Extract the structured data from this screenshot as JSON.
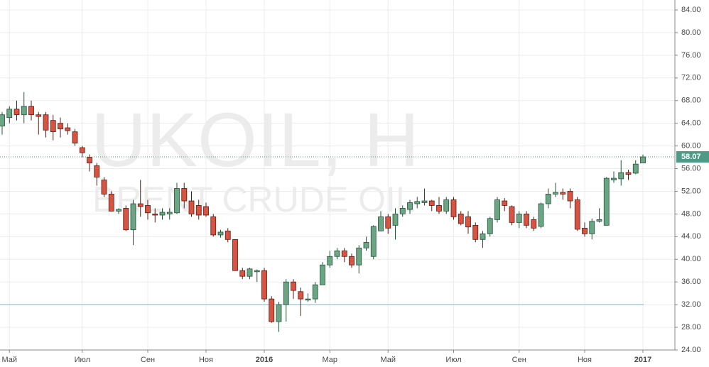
{
  "chart_data": {
    "type": "candlestick",
    "watermark": {
      "symbol": "UKOIL, H",
      "description": "BRENT CRUDE OIL"
    },
    "categories": [
      null,
      "Май",
      null,
      null,
      null,
      null,
      null,
      null,
      null,
      null,
      null,
      "Июл",
      null,
      null,
      null,
      null,
      null,
      null,
      null,
      null,
      "Сен",
      null,
      null,
      null,
      null,
      null,
      null,
      null,
      "Ноя",
      null,
      null,
      null,
      null,
      null,
      null,
      null,
      "2016",
      null,
      null,
      null,
      null,
      null,
      null,
      null,
      null,
      "Мар",
      null,
      null,
      null,
      null,
      null,
      null,
      null,
      "Май",
      null,
      null,
      null,
      null,
      null,
      null,
      null,
      null,
      "Июл",
      null,
      null,
      null,
      null,
      null,
      null,
      null,
      null,
      "Сен",
      null,
      null,
      null,
      null,
      null,
      null,
      null,
      null,
      "Ноя",
      null,
      null,
      null,
      null,
      null,
      null,
      null,
      "2017"
    ],
    "bold_categories": [
      "2016",
      "2017"
    ],
    "open": [
      63.5,
      65,
      66.5,
      65.5,
      67,
      65.5,
      65.5,
      64.5,
      64,
      63.2,
      62.5,
      59.7,
      58,
      56.5,
      54,
      51.5,
      48.5,
      49,
      45.2,
      49.8,
      49.5,
      48,
      47.8,
      48,
      48.2,
      52.5,
      50.3,
      49.5,
      49.3,
      47.5,
      44.3,
      45,
      43.5,
      38,
      37,
      37.8,
      38,
      33,
      29,
      32,
      36,
      34.3,
      32.8,
      33,
      35.5,
      39,
      40.5,
      41.5,
      40.5,
      39,
      42,
      40.5,
      45,
      47.5,
      46,
      48,
      48.8,
      49.8,
      50,
      50.3,
      49.5,
      48.5,
      50.5,
      48,
      47.5,
      46,
      43.5,
      44.5,
      47,
      50.3,
      49.3,
      46.5,
      48,
      47,
      45.8,
      49.8,
      51.5,
      51.8,
      52,
      50.5,
      45.5,
      44.5,
      46.7,
      46,
      54,
      54.2,
      55.3,
      55.2,
      57
    ],
    "high": [
      66,
      67,
      68,
      69.5,
      68,
      66,
      66,
      65.5,
      65,
      64,
      63,
      60,
      58.5,
      57,
      54.5,
      52,
      49,
      49.5,
      50.5,
      54,
      50.5,
      49,
      49,
      49,
      53.5,
      53.5,
      52,
      50.5,
      50,
      48,
      45.2,
      45.5,
      43.5,
      38.5,
      38.5,
      38.2,
      38.5,
      33.5,
      32.5,
      36.5,
      36.5,
      35,
      34,
      36,
      39.5,
      41.5,
      42,
      42,
      41,
      42.5,
      44,
      46,
      48.5,
      48,
      49,
      49.5,
      50.5,
      51,
      52.5,
      50.5,
      51,
      51,
      51,
      48.5,
      48.5,
      46.5,
      45,
      47.5,
      51,
      50.8,
      49.5,
      48.5,
      48.5,
      47.5,
      50,
      52.5,
      53.5,
      52.5,
      52.5,
      51,
      46.5,
      47.2,
      49,
      54.5,
      55.5,
      57.5,
      55.8,
      57.5,
      58.5
    ],
    "low": [
      62,
      64,
      64.5,
      64,
      64.5,
      62,
      61.5,
      61,
      61.5,
      62,
      60,
      58,
      55.5,
      53,
      51,
      48.5,
      48,
      45,
      42.5,
      47.5,
      47,
      46.5,
      47,
      47,
      48,
      49,
      47.5,
      47,
      47.5,
      44,
      43.8,
      43,
      38,
      36.5,
      36.5,
      36,
      32.5,
      28.8,
      27.2,
      29,
      33,
      30,
      32.5,
      32.3,
      35.5,
      38.5,
      40,
      39.5,
      38.5,
      37.5,
      41.5,
      40,
      45,
      44.5,
      43.5,
      47.5,
      48,
      49,
      49.5,
      48.5,
      48,
      48,
      47,
      46,
      44.5,
      43,
      42,
      44,
      46.5,
      48.5,
      46,
      45.5,
      45.5,
      45,
      45.5,
      49,
      51,
      50.5,
      49,
      45,
      44,
      43.5,
      46.5,
      46,
      53.5,
      53,
      54,
      55,
      57
    ],
    "close": [
      65.5,
      66.5,
      65.5,
      67,
      65.5,
      65.2,
      62.8,
      62.5,
      63,
      62.7,
      60.5,
      58.8,
      57,
      54.5,
      51.5,
      48.5,
      48.8,
      45.2,
      49.8,
      49.3,
      48.2,
      47.8,
      48.3,
      48.3,
      52.5,
      50.3,
      48,
      47.8,
      47.8,
      44.3,
      44.8,
      43.5,
      38,
      37,
      38.3,
      38,
      33,
      29,
      32,
      36,
      34.5,
      33,
      33,
      35.5,
      39,
      40.5,
      41.5,
      40.5,
      39,
      42,
      43,
      45.8,
      47.5,
      45.5,
      48,
      49,
      50,
      50.2,
      50.3,
      49.5,
      48.5,
      50.5,
      47.5,
      46.3,
      45.7,
      43.5,
      44.5,
      47.2,
      50.5,
      49.5,
      46.5,
      48,
      46,
      45.5,
      49.8,
      51.5,
      51.8,
      51.5,
      50.3,
      45.3,
      44.5,
      46.7,
      47,
      54.3,
      54.3,
      55.3,
      55,
      56.8,
      58.07
    ],
    "up_color": "#6ba583",
    "up_border": "#225437",
    "down_color": "#d75442",
    "down_border": "#5b1a13",
    "last_price": 58.07,
    "last_price_color": "#4e9a86",
    "hline": 32,
    "hline_color": "#8fc6d8",
    "ylim": [
      24,
      84
    ],
    "yticks": [
      {
        "value": 24,
        "label": "24.00"
      },
      {
        "value": 28,
        "label": "28.00"
      },
      {
        "value": 32,
        "label": "32.00"
      },
      {
        "value": 36,
        "label": "36.00"
      },
      {
        "value": 40,
        "label": "40.00"
      },
      {
        "value": 44,
        "label": "44.00"
      },
      {
        "value": 48,
        "label": "48.00"
      },
      {
        "value": 52,
        "label": "52.00"
      },
      {
        "value": 56,
        "label": "56.00"
      },
      {
        "value": 60,
        "label": "60.00"
      },
      {
        "value": 64,
        "label": "64.00"
      },
      {
        "value": 68,
        "label": "68.00"
      },
      {
        "value": 72,
        "label": "72.00"
      },
      {
        "value": 76,
        "label": "76.00"
      },
      {
        "value": 80,
        "label": "80.00"
      },
      {
        "value": 84,
        "label": "84.00"
      }
    ],
    "grid": true
  }
}
